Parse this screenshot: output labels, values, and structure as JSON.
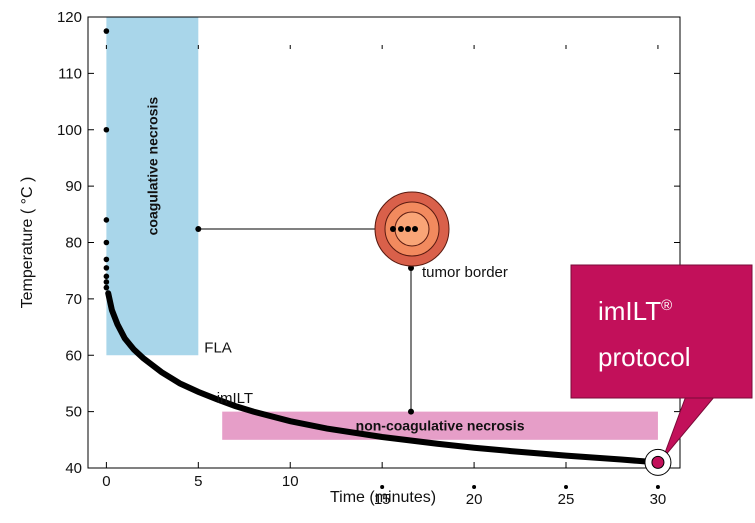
{
  "chart_data": {
    "type": "line",
    "xlabel": "Time (minutes)",
    "ylabel": "Temperature ( °C )",
    "xlim": [
      -1,
      31.2
    ],
    "ylim": [
      40,
      120
    ],
    "xticks": [
      0,
      5,
      10,
      15,
      20,
      25,
      30
    ],
    "yticks": [
      40,
      50,
      60,
      70,
      80,
      90,
      100,
      110,
      120
    ],
    "series": [
      {
        "name": "imILT",
        "color": "#000000",
        "x": [
          0.1,
          0.3,
          0.6,
          1,
          1.5,
          2,
          3,
          4,
          5,
          6,
          7,
          8,
          10,
          12,
          15,
          18,
          20,
          22,
          25,
          28,
          30
        ],
        "values": [
          71,
          68,
          65.5,
          63,
          61,
          59.5,
          57,
          55,
          53.5,
          52.2,
          51,
          50,
          48.3,
          47,
          45.5,
          44.3,
          43.6,
          43,
          42.2,
          41.5,
          41
        ]
      }
    ],
    "points": {
      "color": "#000000",
      "x": [
        0,
        0,
        0,
        0,
        0,
        0,
        0,
        0,
        0
      ],
      "values": [
        117.5,
        100,
        84,
        80,
        77,
        75.5,
        74,
        73,
        72
      ]
    },
    "regions": [
      {
        "label": "coagulative necrosis",
        "color": "#a9d6ea",
        "x": [
          0,
          5
        ],
        "y": [
          60,
          120
        ]
      },
      {
        "label": "non-coagulative necrosis",
        "color": "#e69ec8",
        "x": [
          6.3,
          30
        ],
        "y": [
          45,
          50
        ]
      }
    ],
    "annotations": {
      "fla": "FLA",
      "imilt": "imILT",
      "tumor_border": "tumor border"
    },
    "callout": {
      "name": "imILT",
      "superscript": "®",
      "line2": "protocol",
      "color": "#c2105a"
    }
  }
}
